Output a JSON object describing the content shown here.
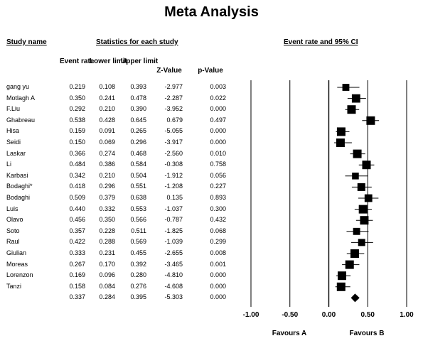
{
  "title": "Meta Analysis",
  "headers": {
    "study_name": "Study name",
    "statistics": "Statistics for each study",
    "ci": "Event rate and 95% CI",
    "event_rate": "Event rate",
    "lower_limit": "Lower limit",
    "upper_limit": "Upper limit",
    "z_value": "Z-Value",
    "p_value": "p-Value"
  },
  "favours": {
    "left": "Favours A",
    "right": "Favours B"
  },
  "axis_ticks": [
    "-1.00",
    "-0.50",
    "0.00",
    "0.50",
    "1.00"
  ],
  "chart_data": {
    "type": "forest",
    "xlim": [
      -1.0,
      1.0
    ],
    "x_ticks": [
      -1.0,
      -0.5,
      0.0,
      0.5,
      1.0
    ],
    "reference_lines": [
      -0.5,
      0.0,
      0.5
    ],
    "studies": [
      {
        "name": "gang yu",
        "rate": "0.219",
        "lower": "0.108",
        "upper": "0.393",
        "z": "-2.977",
        "p": "0.003"
      },
      {
        "name": "Motlagh A",
        "rate": "0.350",
        "lower": "0.241",
        "upper": "0.478",
        "z": "-2.287",
        "p": "0.022"
      },
      {
        "name": "F.Liu",
        "rate": "0.292",
        "lower": "0.210",
        "upper": "0.390",
        "z": "-3.952",
        "p": "0.000"
      },
      {
        "name": "Ghabreau",
        "rate": "0.538",
        "lower": "0.428",
        "upper": "0.645",
        "z": "0.679",
        "p": "0.497"
      },
      {
        "name": "Hisa",
        "rate": "0.159",
        "lower": "0.091",
        "upper": "0.265",
        "z": "-5.055",
        "p": "0.000"
      },
      {
        "name": "Seidi",
        "rate": "0.150",
        "lower": "0.069",
        "upper": "0.296",
        "z": "-3.917",
        "p": "0.000"
      },
      {
        "name": "Laskar",
        "rate": "0.366",
        "lower": "0.274",
        "upper": "0.468",
        "z": "-2.560",
        "p": "0.010"
      },
      {
        "name": "Li",
        "rate": "0.484",
        "lower": "0.386",
        "upper": "0.584",
        "z": "-0.308",
        "p": "0.758"
      },
      {
        "name": "Karbasi",
        "rate": "0.342",
        "lower": "0.210",
        "upper": "0.504",
        "z": "-1.912",
        "p": "0.056"
      },
      {
        "name": "Bodaghi*",
        "rate": "0.418",
        "lower": "0.296",
        "upper": "0.551",
        "z": "-1.208",
        "p": "0.227"
      },
      {
        "name": "Bodaghi",
        "rate": "0.509",
        "lower": "0.379",
        "upper": "0.638",
        "z": "0.135",
        "p": "0.893"
      },
      {
        "name": "Luis",
        "rate": "0.440",
        "lower": "0.332",
        "upper": "0.553",
        "z": "-1.037",
        "p": "0.300"
      },
      {
        "name": "Olavo",
        "rate": "0.456",
        "lower": "0.350",
        "upper": "0.566",
        "z": "-0.787",
        "p": "0.432"
      },
      {
        "name": "Soto",
        "rate": "0.357",
        "lower": "0.228",
        "upper": "0.511",
        "z": "-1.825",
        "p": "0.068"
      },
      {
        "name": "Raul",
        "rate": "0.422",
        "lower": "0.288",
        "upper": "0.569",
        "z": "-1.039",
        "p": "0.299"
      },
      {
        "name": "Giulian",
        "rate": "0.333",
        "lower": "0.231",
        "upper": "0.455",
        "z": "-2.655",
        "p": "0.008"
      },
      {
        "name": "Moreas",
        "rate": "0.267",
        "lower": "0.170",
        "upper": "0.392",
        "z": "-3.465",
        "p": "0.001"
      },
      {
        "name": "Lorenzon",
        "rate": "0.169",
        "lower": "0.096",
        "upper": "0.280",
        "z": "-4.810",
        "p": "0.000"
      },
      {
        "name": "Tanzi",
        "rate": "0.158",
        "lower": "0.084",
        "upper": "0.276",
        "z": "-4.608",
        "p": "0.000"
      }
    ],
    "summary": {
      "name": "",
      "rate": "0.337",
      "lower": "0.284",
      "upper": "0.395",
      "z": "-5.303",
      "p": "0.000"
    }
  }
}
